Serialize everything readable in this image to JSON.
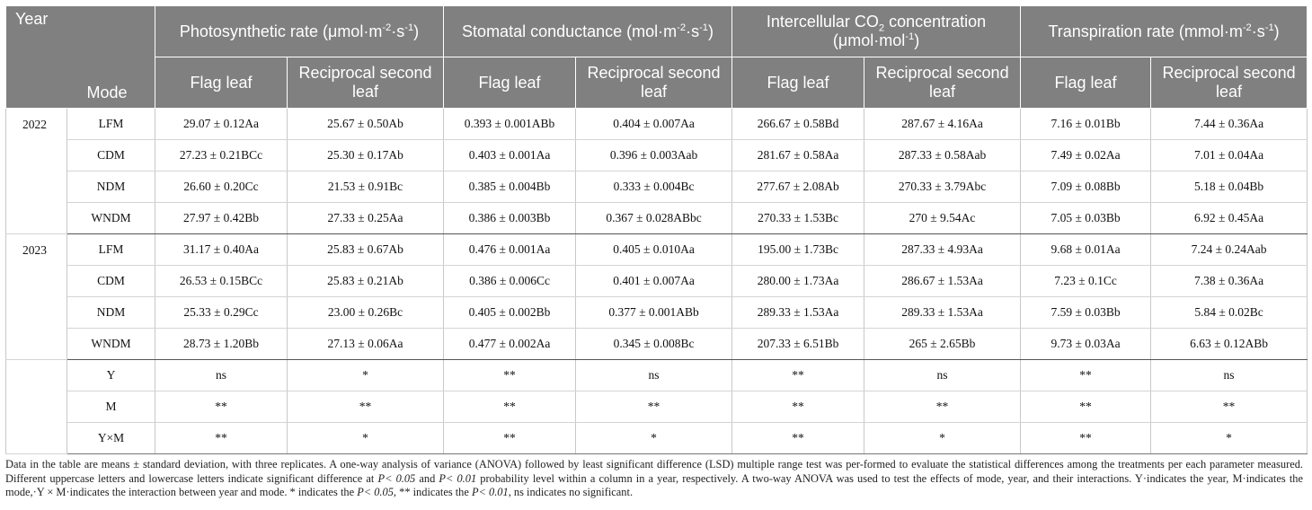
{
  "header": {
    "year": "Year",
    "mode": "Mode",
    "groups": [
      {
        "pre": "Photosynthetic rate (μmol·m",
        "s1": "-2",
        "mid": "·s",
        "s2": "-1",
        "post": ")"
      },
      {
        "pre": "Stomatal conductance (mol·m",
        "s1": "-2",
        "mid": "·s",
        "s2": "-1",
        "post": ")"
      },
      {
        "pre": "Intercellular CO",
        "sub": "2",
        "mid": " concentration (μmol·mol",
        "s2": "-1",
        "post": ")"
      },
      {
        "pre": "Transpiration rate (mmol·m",
        "s1": "-2",
        "mid": "·s",
        "s2": "-1",
        "post": ")"
      }
    ],
    "sub": [
      "Flag leaf",
      "Reciprocal second leaf",
      "Flag leaf",
      "Reciprocal second leaf",
      "Flag leaf",
      "Reciprocal second leaf",
      "Flag leaf",
      "Reciprocal second leaf"
    ]
  },
  "groups": [
    {
      "year": "2022",
      "rows": [
        {
          "mode": "LFM",
          "values": [
            "29.07 ± 0.12Aa",
            "25.67 ± 0.50Ab",
            "0.393 ± 0.001ABb",
            "0.404 ± 0.007Aa",
            "266.67 ± 0.58Bd",
            "287.67 ± 4.16Aa",
            "7.16 ± 0.01Bb",
            "7.44 ± 0.36Aa"
          ]
        },
        {
          "mode": "CDM",
          "values": [
            "27.23 ± 0.21BCc",
            "25.30 ± 0.17Ab",
            "0.403 ± 0.001Aa",
            "0.396 ± 0.003Aab",
            "281.67 ± 0.58Aa",
            "287.33 ± 0.58Aab",
            "7.49 ± 0.02Aa",
            "7.01 ± 0.04Aa"
          ]
        },
        {
          "mode": "NDM",
          "values": [
            "26.60 ± 0.20Cc",
            "21.53 ± 0.91Bc",
            "0.385 ± 0.004Bb",
            "0.333 ± 0.004Bc",
            "277.67 ± 2.08Ab",
            "270.33 ± 3.79Abc",
            "7.09 ± 0.08Bb",
            "5.18 ± 0.04Bb"
          ]
        },
        {
          "mode": "WNDM",
          "values": [
            "27.97 ± 0.42Bb",
            "27.33 ± 0.25Aa",
            "0.386 ± 0.003Bb",
            "0.367 ± 0.028ABbc",
            "270.33 ± 1.53Bc",
            "270 ± 9.54Ac",
            "7.05 ± 0.03Bb",
            "6.92 ± 0.45Aa"
          ]
        }
      ]
    },
    {
      "year": "2023",
      "rows": [
        {
          "mode": "LFM",
          "values": [
            "31.17 ± 0.40Aa",
            "25.83 ± 0.67Ab",
            "0.476 ± 0.001Aa",
            "0.405 ± 0.010Aa",
            "195.00 ± 1.73Bc",
            "287.33 ± 4.93Aa",
            "9.68 ± 0.01Aa",
            "7.24 ± 0.24Aab"
          ]
        },
        {
          "mode": "CDM",
          "values": [
            "26.53 ± 0.15BCc",
            "25.83 ± 0.21Ab",
            "0.386 ± 0.006Cc",
            "0.401 ± 0.007Aa",
            "280.00 ± 1.73Aa",
            "286.67 ± 1.53Aa",
            "7.23 ± 0.1Cc",
            "7.38 ± 0.36Aa"
          ]
        },
        {
          "mode": "NDM",
          "values": [
            "25.33 ± 0.29Cc",
            "23.00 ± 0.26Bc",
            "0.405 ± 0.002Bb",
            "0.377 ± 0.001ABb",
            "289.33 ± 1.53Aa",
            "289.33 ± 1.53Aa",
            "7.59 ± 0.03Bb",
            "5.84 ± 0.02Bc"
          ]
        },
        {
          "mode": "WNDM",
          "values": [
            "28.73 ± 1.20Bb",
            "27.13 ± 0.06Aa",
            "0.477 ± 0.002Aa",
            "0.345 ± 0.008Bc",
            "207.33 ± 6.51Bb",
            "265 ± 2.65Bb",
            "9.73 ± 0.03Aa",
            "6.63 ± 0.12ABb"
          ]
        }
      ]
    },
    {
      "year": "",
      "rows": [
        {
          "mode": "Y",
          "values": [
            "ns",
            "*",
            "**",
            "ns",
            "**",
            "ns",
            "**",
            "ns"
          ]
        },
        {
          "mode": "M",
          "values": [
            "**",
            "**",
            "**",
            "**",
            "**",
            "**",
            "**",
            "**"
          ]
        },
        {
          "mode": "Y×M",
          "values": [
            "**",
            "*",
            "**",
            "*",
            "**",
            "*",
            "**",
            "*"
          ]
        }
      ]
    }
  ],
  "note": {
    "t1": "Data in the table are means ± standard deviation, with three replicates. A one-way analysis of variance (ANOVA) followed by least significant difference (LSD) multiple range test was per-formed to evaluate the statistical differences among the treatments per each parameter measured. Different uppercase letters and lowercase letters indicate significant difference at ",
    "i1": "P< 0.05",
    "t2": " and ",
    "i2": "P< 0.01",
    "t3": " probability level within a column in a year, respectively. A two-way ANOVA was used to test the effects of mode, year, and their interactions. Y·indicates the year, M·indicates the mode,·Y × M·indicates the interaction between year and mode. * indicates the ",
    "i3": "P< 0.05",
    "t4": ", ** indicates the ",
    "i4": "P< 0.01",
    "t5": ", ns indicates no significant."
  }
}
